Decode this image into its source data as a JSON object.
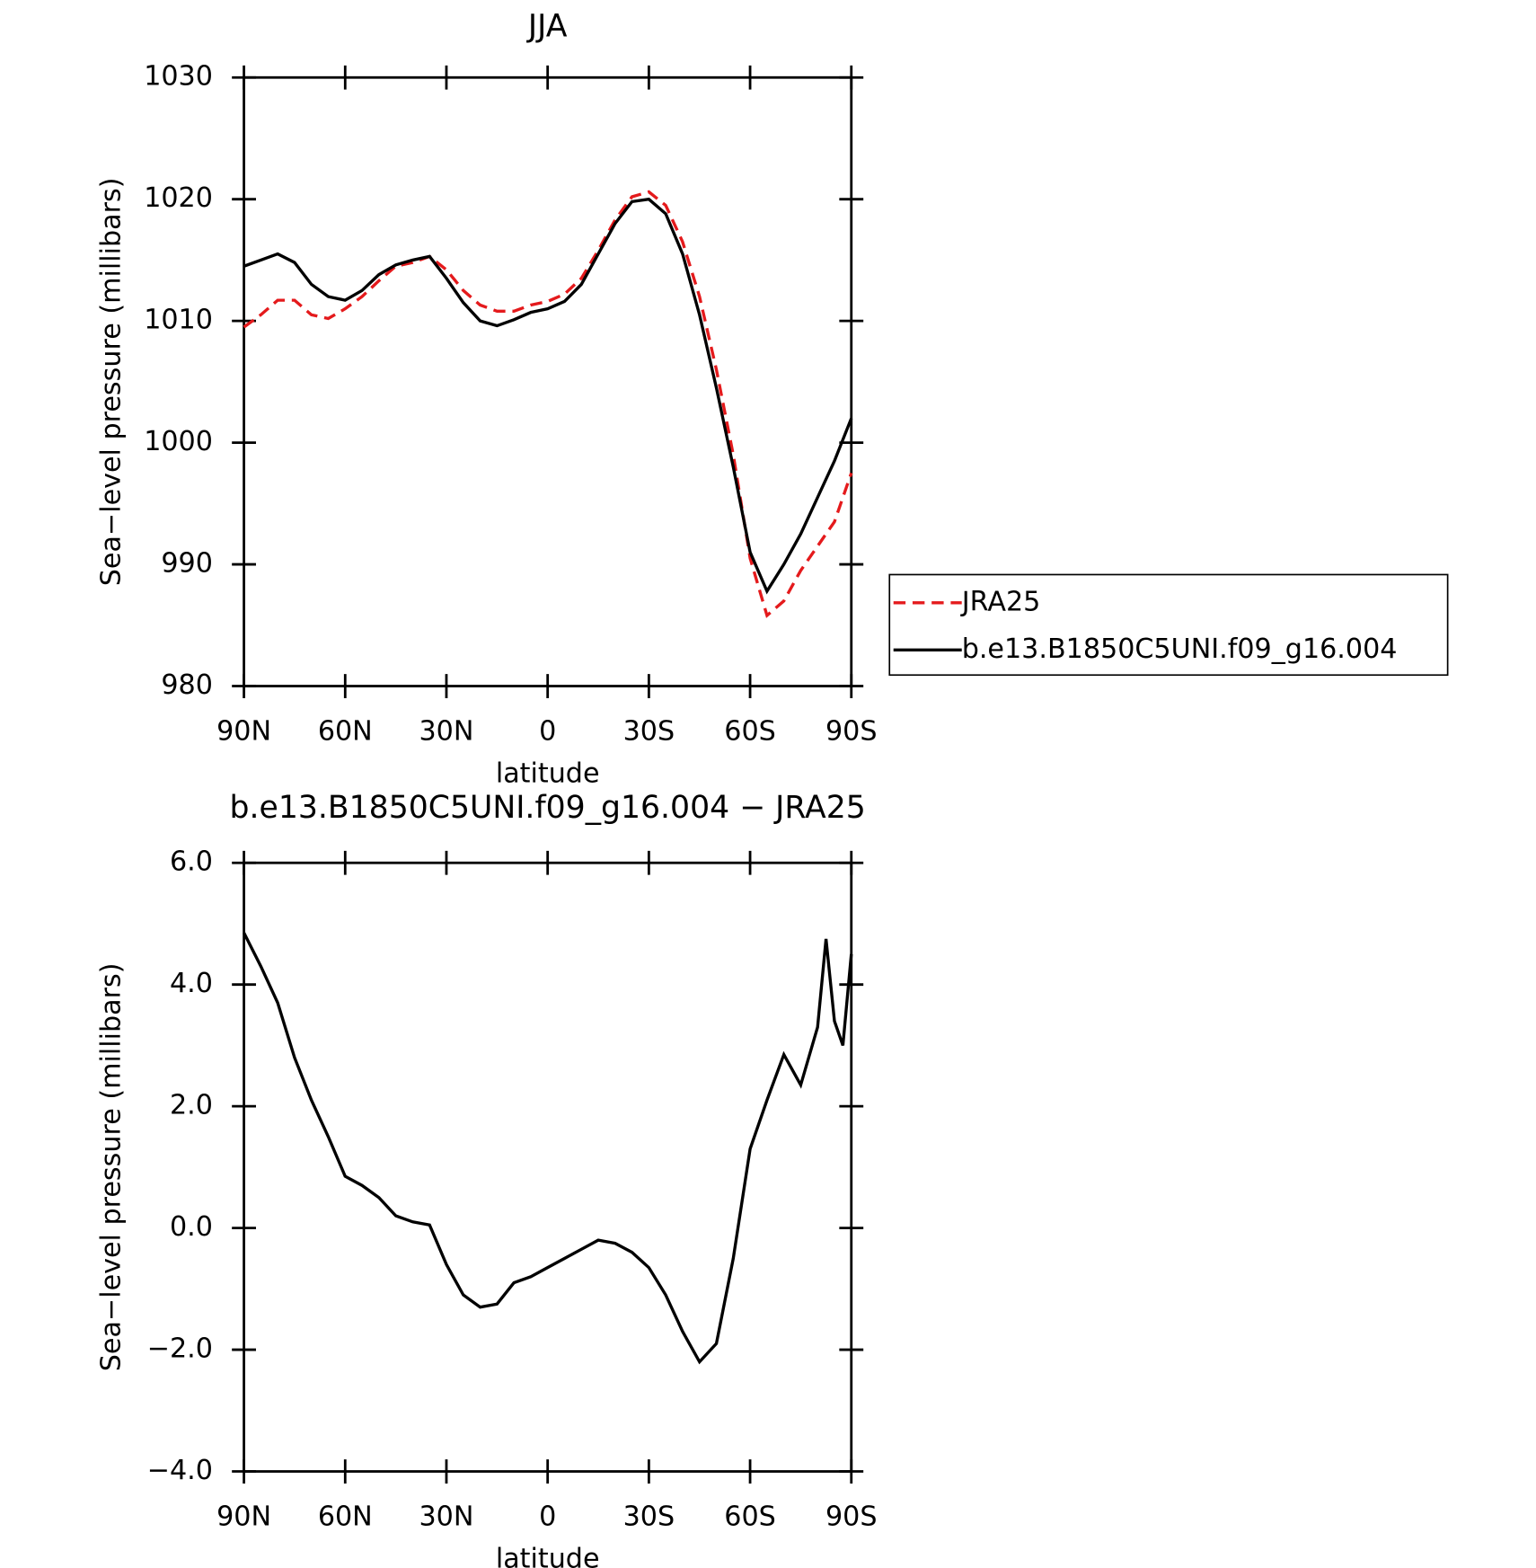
{
  "chart_data": [
    {
      "type": "line",
      "title": "JJA",
      "xlabel": "latitude",
      "ylabel": "Sea−level pressure (millibars)",
      "x": [
        90,
        85,
        80,
        75,
        70,
        65,
        60,
        55,
        50,
        45,
        40,
        35,
        30,
        25,
        20,
        15,
        10,
        5,
        0,
        -5,
        -10,
        -15,
        -20,
        -25,
        -30,
        -35,
        -40,
        -45,
        -50,
        -55,
        -60,
        -65,
        -70,
        -75,
        -80,
        -85,
        -90
      ],
      "series": [
        {
          "name": "JRA25",
          "color": "#e41a1c",
          "dashed": true,
          "values": [
            1009.5,
            1010.5,
            1011.7,
            1011.7,
            1010.5,
            1010.2,
            1011.0,
            1012.0,
            1013.3,
            1014.5,
            1014.8,
            1015.3,
            1014.2,
            1012.5,
            1011.3,
            1010.8,
            1010.8,
            1011.3,
            1011.6,
            1012.2,
            1013.5,
            1015.8,
            1018.3,
            1020.2,
            1020.6,
            1019.5,
            1016.5,
            1012,
            1006,
            999,
            990.5,
            985.8,
            987,
            989.5,
            991.5,
            993.5,
            997.5
          ]
        },
        {
          "name": "b.e13.B1850C5UNI.f09_g16.004",
          "color": "#000000",
          "dashed": false,
          "values": [
            1014.5,
            1015.0,
            1015.5,
            1014.8,
            1013.0,
            1012.0,
            1011.7,
            1012.5,
            1013.8,
            1014.6,
            1015.0,
            1015.3,
            1013.5,
            1011.5,
            1010.0,
            1009.6,
            1010.1,
            1010.7,
            1011.0,
            1011.6,
            1013.0,
            1015.5,
            1018.0,
            1019.8,
            1020.0,
            1018.8,
            1015.5,
            1010.5,
            1004.5,
            998,
            991,
            987.8,
            990,
            992.5,
            995.5,
            998.5,
            1002
          ]
        }
      ],
      "xlim": [
        90,
        -90
      ],
      "xticks": [
        {
          "value": 90,
          "label": "90N"
        },
        {
          "value": 60,
          "label": "60N"
        },
        {
          "value": 30,
          "label": "30N"
        },
        0,
        {
          "value": -30,
          "label": "30S"
        },
        {
          "value": -60,
          "label": "60S"
        },
        {
          "value": -90,
          "label": "90S"
        }
      ],
      "ylim": [
        980,
        1030
      ],
      "yticks": [
        980,
        990,
        1000,
        1010,
        1020,
        1030
      ],
      "legend": "right"
    },
    {
      "type": "line",
      "title": "b.e13.B1850C5UNI.f09_g16.004 − JRA25",
      "xlabel": "latitude",
      "ylabel": "Sea−level pressure (millibars)",
      "x": [
        90,
        85,
        80,
        75,
        70,
        65,
        60,
        55,
        50,
        45,
        40,
        35,
        30,
        25,
        20,
        15,
        10,
        5,
        0,
        -5,
        -10,
        -15,
        -20,
        -25,
        -30,
        -35,
        -40,
        -45,
        -50,
        -55,
        -60,
        -65,
        -70,
        -75,
        -80,
        -82.5,
        -85,
        -87.5,
        -90
      ],
      "color": "#000000",
      "values": [
        4.85,
        4.3,
        3.7,
        2.8,
        2.1,
        1.5,
        0.85,
        0.7,
        0.5,
        0.2,
        0.1,
        0.05,
        -0.6,
        -1.1,
        -1.3,
        -1.25,
        -0.9,
        -0.8,
        -0.65,
        -0.5,
        -0.35,
        -0.2,
        -0.25,
        -0.4,
        -0.65,
        -1.1,
        -1.7,
        -2.2,
        -1.9,
        -0.5,
        1.3,
        2.1,
        2.85,
        2.35,
        3.3,
        4.75,
        3.4,
        3.0,
        4.5
      ],
      "xlim": [
        90,
        -90
      ],
      "xticks": [
        {
          "value": 90,
          "label": "90N"
        },
        {
          "value": 60,
          "label": "60N"
        },
        {
          "value": 30,
          "label": "30N"
        },
        0,
        {
          "value": -30,
          "label": "30S"
        },
        {
          "value": -60,
          "label": "60S"
        },
        {
          "value": -90,
          "label": "90S"
        }
      ],
      "ylim": [
        -4,
        6
      ],
      "yticks": [
        {
          "value": -4,
          "label": "−4.0"
        },
        {
          "value": -2,
          "label": "−2.0"
        },
        {
          "value": 0,
          "label": "0.0"
        },
        {
          "value": 2,
          "label": "2.0"
        },
        {
          "value": 4,
          "label": "4.0"
        },
        {
          "value": 6,
          "label": "6.0"
        }
      ]
    }
  ]
}
